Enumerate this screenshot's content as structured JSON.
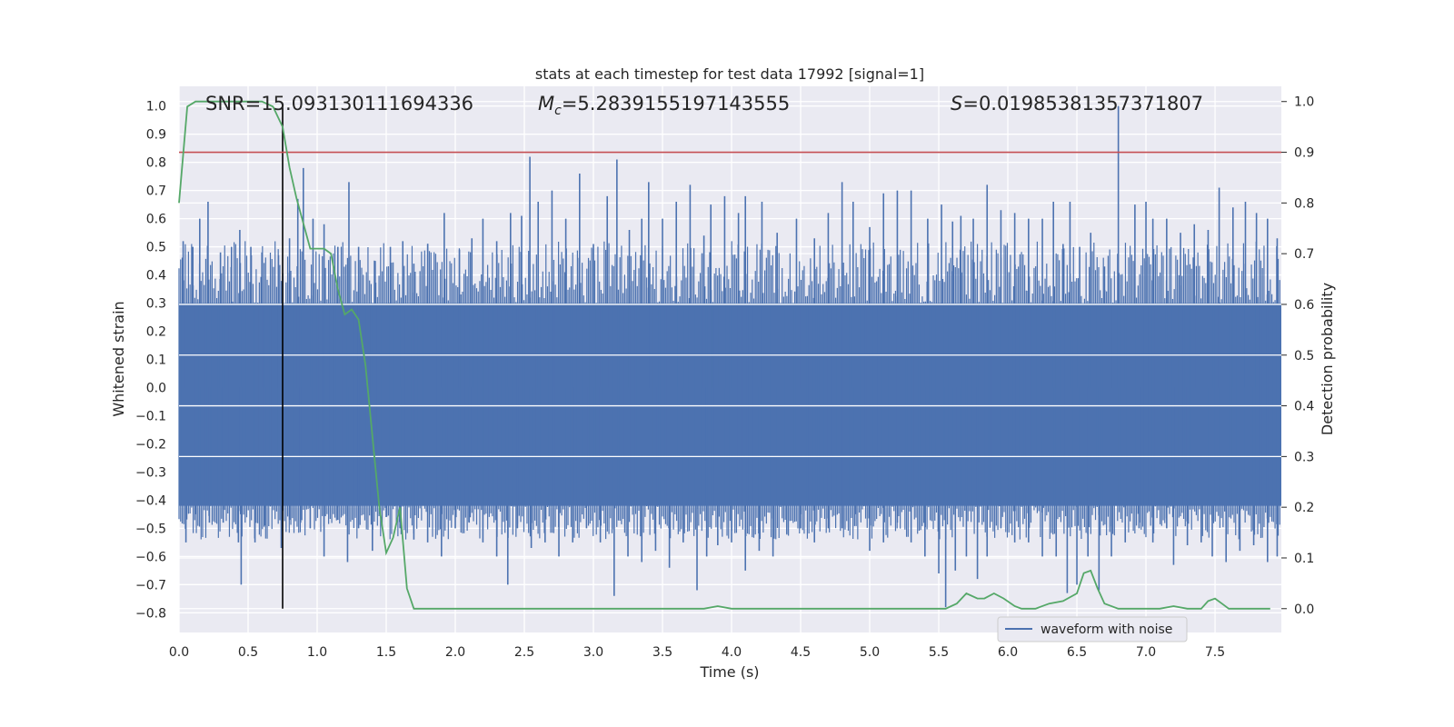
{
  "chart_data": {
    "type": "line",
    "title": "stats at each timestep for test data 17992 [signal=1]",
    "xlabel": "Time (s)",
    "ylabel_left": "Whitened strain",
    "ylabel_right": "Detection probability",
    "xlim": [
      0.0,
      7.98
    ],
    "ylim_left": [
      -0.87,
      1.07
    ],
    "ylim_right": [
      -0.047,
      1.03
    ],
    "x_ticks": [
      "0.0",
      "0.5",
      "1.0",
      "1.5",
      "2.0",
      "2.5",
      "3.0",
      "3.5",
      "4.0",
      "4.5",
      "5.0",
      "5.5",
      "6.0",
      "6.5",
      "7.0",
      "7.5"
    ],
    "y_ticks_left": [
      "-0.8",
      "-0.7",
      "-0.6",
      "-0.5",
      "-0.4",
      "-0.3",
      "-0.2",
      "-0.1",
      "0.0",
      "0.1",
      "0.2",
      "0.3",
      "0.4",
      "0.5",
      "0.6",
      "0.7",
      "0.8",
      "0.9",
      "1.0"
    ],
    "y_ticks_right": [
      "0.0",
      "0.1",
      "0.2",
      "0.3",
      "0.4",
      "0.5",
      "0.6",
      "0.7",
      "0.8",
      "0.9",
      "1.0"
    ],
    "grid": true,
    "annotations": {
      "snr": "SNR=15.093130111694336",
      "mc_symbol": "M",
      "mc_sub": "c",
      "mc_value": "=5.2839155197143555",
      "s_symbol": "S",
      "s_value": "=0.019853813573718 07"
    },
    "threshold_right": 0.9,
    "marker_time": 0.75,
    "legend": {
      "position": "lower-right",
      "entries": [
        "waveform with noise"
      ]
    },
    "colors": {
      "waveform": "#4c72b0",
      "probability": "#55a868",
      "threshold": "#c44e52",
      "marker": "#000000",
      "background": "#eaeaf2"
    },
    "series": [
      {
        "name": "waveform with noise",
        "axis": "left",
        "envelope_note": "dense noise",
        "dense_band": [
          -0.42,
          0.3
        ],
        "spikes": [
          [
            0.03,
            0.52
          ],
          [
            0.1,
            0.5
          ],
          [
            0.15,
            0.6
          ],
          [
            0.21,
            0.66
          ],
          [
            0.3,
            0.48
          ],
          [
            0.38,
            0.5
          ],
          [
            0.44,
            0.56
          ],
          [
            0.52,
            0.5
          ],
          [
            0.6,
            0.48
          ],
          [
            0.72,
            0.47
          ],
          [
            0.8,
            0.53
          ],
          [
            0.86,
            0.67
          ],
          [
            0.9,
            0.78
          ],
          [
            0.97,
            0.6
          ],
          [
            1.05,
            0.58
          ],
          [
            1.15,
            0.5
          ],
          [
            1.23,
            0.73
          ],
          [
            1.3,
            0.5
          ],
          [
            1.42,
            0.45
          ],
          [
            1.53,
            0.5
          ],
          [
            1.62,
            0.52
          ],
          [
            1.7,
            0.44
          ],
          [
            1.8,
            0.51
          ],
          [
            1.92,
            0.62
          ],
          [
            2.03,
            0.49
          ],
          [
            2.12,
            0.53
          ],
          [
            2.2,
            0.6
          ],
          [
            2.3,
            0.52
          ],
          [
            2.4,
            0.62
          ],
          [
            2.48,
            0.61
          ],
          [
            2.54,
            0.82
          ],
          [
            2.6,
            0.66
          ],
          [
            2.7,
            0.7
          ],
          [
            2.8,
            0.6
          ],
          [
            2.9,
            0.76
          ],
          [
            3.0,
            0.51
          ],
          [
            3.1,
            0.68
          ],
          [
            3.17,
            0.81
          ],
          [
            3.26,
            0.56
          ],
          [
            3.35,
            0.6
          ],
          [
            3.4,
            0.73
          ],
          [
            3.5,
            0.6
          ],
          [
            3.6,
            0.66
          ],
          [
            3.7,
            0.72
          ],
          [
            3.8,
            0.54
          ],
          [
            3.85,
            0.65
          ],
          [
            3.95,
            0.68
          ],
          [
            4.05,
            0.62
          ],
          [
            4.1,
            0.68
          ],
          [
            4.22,
            0.66
          ],
          [
            4.33,
            0.55
          ],
          [
            4.47,
            0.6
          ],
          [
            4.6,
            0.53
          ],
          [
            4.7,
            0.62
          ],
          [
            4.8,
            0.73
          ],
          [
            4.88,
            0.66
          ],
          [
            5.0,
            0.57
          ],
          [
            5.1,
            0.69
          ],
          [
            5.2,
            0.7
          ],
          [
            5.3,
            0.7
          ],
          [
            5.42,
            0.6
          ],
          [
            5.52,
            0.65
          ],
          [
            5.6,
            0.59
          ],
          [
            5.66,
            0.61
          ],
          [
            5.75,
            0.6
          ],
          [
            5.85,
            0.72
          ],
          [
            5.95,
            0.63
          ],
          [
            6.05,
            0.62
          ],
          [
            6.15,
            0.6
          ],
          [
            6.25,
            0.6
          ],
          [
            6.33,
            0.66
          ],
          [
            6.4,
            0.51
          ],
          [
            6.45,
            0.66
          ],
          [
            6.52,
            0.5
          ],
          [
            6.6,
            0.55
          ],
          [
            6.7,
            0.43
          ],
          [
            6.8,
            1.0
          ],
          [
            6.92,
            0.65
          ],
          [
            7.0,
            0.66
          ],
          [
            7.05,
            0.6
          ],
          [
            7.15,
            0.6
          ],
          [
            7.25,
            0.55
          ],
          [
            7.35,
            0.58
          ],
          [
            7.45,
            0.56
          ],
          [
            7.53,
            0.71
          ],
          [
            7.63,
            0.64
          ],
          [
            7.72,
            0.66
          ],
          [
            7.8,
            0.62
          ],
          [
            7.88,
            0.6
          ],
          [
            7.95,
            0.53
          ]
        ],
        "dips": [
          [
            0.05,
            -0.55
          ],
          [
            0.12,
            -0.45
          ],
          [
            0.22,
            -0.48
          ],
          [
            0.32,
            -0.48
          ],
          [
            0.43,
            -0.55
          ],
          [
            0.45,
            -0.7
          ],
          [
            0.55,
            -0.55
          ],
          [
            0.62,
            -0.49
          ],
          [
            0.74,
            -0.57
          ],
          [
            0.8,
            -0.47
          ],
          [
            0.88,
            -0.48
          ],
          [
            0.95,
            -0.5
          ],
          [
            1.05,
            -0.6
          ],
          [
            1.15,
            -0.47
          ],
          [
            1.22,
            -0.62
          ],
          [
            1.3,
            -0.5
          ],
          [
            1.4,
            -0.58
          ],
          [
            1.5,
            -0.46
          ],
          [
            1.6,
            -0.5
          ],
          [
            1.7,
            -0.54
          ],
          [
            1.8,
            -0.55
          ],
          [
            1.9,
            -0.6
          ],
          [
            2.0,
            -0.5
          ],
          [
            2.1,
            -0.48
          ],
          [
            2.2,
            -0.55
          ],
          [
            2.3,
            -0.6
          ],
          [
            2.38,
            -0.7
          ],
          [
            2.45,
            -0.5
          ],
          [
            2.55,
            -0.57
          ],
          [
            2.65,
            -0.55
          ],
          [
            2.75,
            -0.6
          ],
          [
            2.85,
            -0.55
          ],
          [
            2.95,
            -0.5
          ],
          [
            3.05,
            -0.55
          ],
          [
            3.15,
            -0.74
          ],
          [
            3.25,
            -0.6
          ],
          [
            3.35,
            -0.62
          ],
          [
            3.45,
            -0.58
          ],
          [
            3.55,
            -0.64
          ],
          [
            3.65,
            -0.55
          ],
          [
            3.75,
            -0.72
          ],
          [
            3.82,
            -0.6
          ],
          [
            3.9,
            -0.56
          ],
          [
            4.0,
            -0.55
          ],
          [
            4.1,
            -0.65
          ],
          [
            4.2,
            -0.58
          ],
          [
            4.3,
            -0.6
          ],
          [
            4.4,
            -0.52
          ],
          [
            4.5,
            -0.5
          ],
          [
            4.6,
            -0.55
          ],
          [
            4.7,
            -0.5
          ],
          [
            4.8,
            -0.5
          ],
          [
            4.9,
            -0.45
          ],
          [
            5.0,
            -0.58
          ],
          [
            5.1,
            -0.55
          ],
          [
            5.2,
            -0.48
          ],
          [
            5.3,
            -0.55
          ],
          [
            5.4,
            -0.6
          ],
          [
            5.5,
            -0.66
          ],
          [
            5.55,
            -0.78
          ],
          [
            5.62,
            -0.65
          ],
          [
            5.7,
            -0.6
          ],
          [
            5.78,
            -0.68
          ],
          [
            5.85,
            -0.6
          ],
          [
            5.95,
            -0.5
          ],
          [
            6.05,
            -0.55
          ],
          [
            6.15,
            -0.55
          ],
          [
            6.25,
            -0.6
          ],
          [
            6.35,
            -0.6
          ],
          [
            6.43,
            -0.73
          ],
          [
            6.5,
            -0.7
          ],
          [
            6.58,
            -0.6
          ],
          [
            6.66,
            -0.72
          ],
          [
            6.75,
            -0.6
          ],
          [
            6.85,
            -0.55
          ],
          [
            6.95,
            -0.5
          ],
          [
            7.05,
            -0.55
          ],
          [
            7.15,
            -0.5
          ],
          [
            7.2,
            -0.63
          ],
          [
            7.3,
            -0.56
          ],
          [
            7.4,
            -0.55
          ],
          [
            7.48,
            -0.6
          ],
          [
            7.58,
            -0.62
          ],
          [
            7.68,
            -0.58
          ],
          [
            7.78,
            -0.56
          ],
          [
            7.88,
            -0.62
          ],
          [
            7.95,
            -0.6
          ]
        ]
      },
      {
        "name": "detection probability",
        "axis": "right",
        "x": [
          0.0,
          0.06,
          0.12,
          0.2,
          0.3,
          0.4,
          0.5,
          0.6,
          0.68,
          0.75,
          0.8,
          0.85,
          0.9,
          0.95,
          1.0,
          1.05,
          1.1,
          1.15,
          1.2,
          1.25,
          1.3,
          1.35,
          1.4,
          1.45,
          1.5,
          1.55,
          1.6,
          1.65,
          1.7,
          1.75,
          1.8,
          1.9,
          2.0,
          2.2,
          2.4,
          2.5,
          2.6,
          2.8,
          3.0,
          3.2,
          3.4,
          3.6,
          3.7,
          3.8,
          3.9,
          4.0,
          4.2,
          4.4,
          4.6,
          4.8,
          5.0,
          5.2,
          5.4,
          5.55,
          5.63,
          5.7,
          5.78,
          5.83,
          5.9,
          5.97,
          6.05,
          6.1,
          6.2,
          6.3,
          6.4,
          6.5,
          6.55,
          6.6,
          6.65,
          6.7,
          6.8,
          6.9,
          7.0,
          7.1,
          7.2,
          7.3,
          7.4,
          7.45,
          7.5,
          7.55,
          7.6,
          7.7,
          7.8,
          7.9
        ],
        "values": [
          0.8,
          0.99,
          1.0,
          1.0,
          1.0,
          1.0,
          1.0,
          1.0,
          0.99,
          0.95,
          0.87,
          0.81,
          0.76,
          0.71,
          0.71,
          0.71,
          0.7,
          0.63,
          0.58,
          0.59,
          0.57,
          0.48,
          0.34,
          0.2,
          0.11,
          0.14,
          0.2,
          0.04,
          0.0,
          0.0,
          0.0,
          0.0,
          0.0,
          0.0,
          0.0,
          0.0,
          0.0,
          0.0,
          0.0,
          0.0,
          0.0,
          0.0,
          0.0,
          0.0,
          0.005,
          0.0,
          0.0,
          0.0,
          0.0,
          0.0,
          0.0,
          0.0,
          0.0,
          0.0,
          0.01,
          0.03,
          0.02,
          0.02,
          0.03,
          0.02,
          0.005,
          0.0,
          0.0,
          0.01,
          0.015,
          0.03,
          0.07,
          0.075,
          0.04,
          0.01,
          0.0,
          0.0,
          0.0,
          0.0,
          0.005,
          0.0,
          0.0,
          0.015,
          0.02,
          0.01,
          0.0,
          0.0,
          0.0,
          0.0
        ]
      }
    ]
  }
}
